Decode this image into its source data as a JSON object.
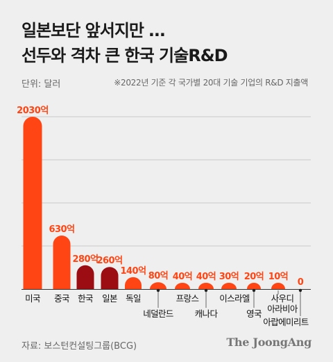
{
  "header": {
    "title_line1": "일본보단 앞서지만 …",
    "title_line2": "선두와 격차 큰 한국 기술R&D",
    "unit": "단위: 달러",
    "note": "※2022년 기준 각 국가별 20대 기술 기업의 R&D 지출액"
  },
  "footer": {
    "source": "자료: 보스턴컨설팅그룹(BCG)",
    "brand": "The JoongAng"
  },
  "colors": {
    "primary": "#ff4513",
    "highlight": "#9b0d12",
    "grid": "#bdbdbd",
    "background": "#efefef"
  },
  "chart_data": {
    "type": "bar",
    "categories": [
      "미국",
      "중국",
      "한국",
      "일본",
      "독일",
      "네덜란드",
      "프랑스",
      "캐나다",
      "이스라엘",
      "영국",
      "사우디 아라비아",
      "아랍에미리트"
    ],
    "category_label_lines": [
      [
        "미국"
      ],
      [
        "중국"
      ],
      [
        "한국"
      ],
      [
        "일본"
      ],
      [
        "독일"
      ],
      [
        "네덜란드"
      ],
      [
        "프랑스"
      ],
      [
        "캐나다"
      ],
      [
        "이스라엘"
      ],
      [
        "영국"
      ],
      [
        "사우디",
        "아라비아"
      ],
      [
        "아랍에미리트"
      ]
    ],
    "values": [
      2030,
      630,
      280,
      260,
      140,
      80,
      40,
      40,
      30,
      20,
      10,
      0
    ],
    "data_labels": [
      "2030억",
      "630억",
      "280억",
      "260억",
      "140억",
      "80억",
      "40억",
      "40억",
      "30억",
      "20억",
      "10억",
      "0"
    ],
    "highlighted": [
      "한국",
      "일본"
    ],
    "ylim": [
      0,
      2030
    ],
    "grid": true,
    "xlabel": "",
    "ylabel": ""
  }
}
